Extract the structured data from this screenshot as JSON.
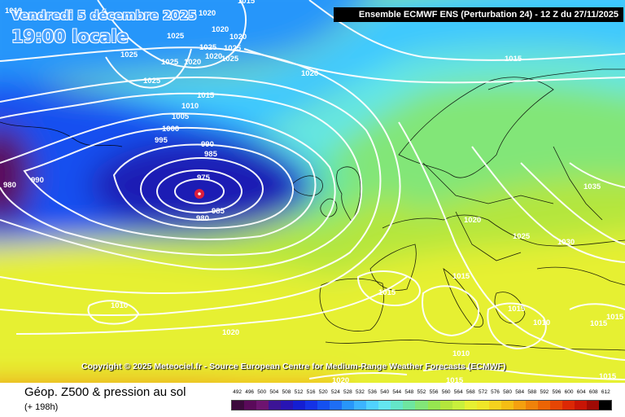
{
  "header": {
    "date_text": "Vendredi 5 décembre 2025",
    "time_text": "19:00 locale",
    "run_info": "Ensemble ECMWF ENS  (Perturbation 24)  -  12 Z du 27/11/2025"
  },
  "copyright": "Copyright © 2025 Meteociel.fr - Source European Centre for Medium-Range Weather Forecasts (ECMWF)",
  "footer": {
    "field_title": "Géop. Z500 & pression au sol",
    "forecast_hours": "(+ 198h)"
  },
  "legend": {
    "labels": [
      "492",
      "496",
      "500",
      "504",
      "508",
      "512",
      "516",
      "520",
      "524",
      "528",
      "532",
      "536",
      "540",
      "544",
      "548",
      "552",
      "556",
      "560",
      "564",
      "568",
      "572",
      "576",
      "580",
      "584",
      "588",
      "592",
      "596",
      "600",
      "604",
      "608",
      "612"
    ],
    "colors": [
      "#3c0a3c",
      "#5a0a5a",
      "#6e1470",
      "#3c1496",
      "#2814b4",
      "#141ed2",
      "#1432e6",
      "#1450f0",
      "#1e6ef5",
      "#2896fa",
      "#3cb4ff",
      "#50d2ff",
      "#64e6f0",
      "#64e6c8",
      "#6ee6a0",
      "#82e678",
      "#96e650",
      "#b4e63c",
      "#c8f03c",
      "#e6f032",
      "#f0e628",
      "#f5d21e",
      "#f5be14",
      "#f5a00f",
      "#f0820a",
      "#eb6405",
      "#e64605",
      "#dc2805",
      "#c81405",
      "#a00a05",
      "#000000"
    ]
  },
  "map": {
    "colors": {
      "purple": "#5a0a5a",
      "deep_blue": "#1e1eb4",
      "blue": "#1450f0",
      "mid_blue": "#2896fa",
      "light_blue": "#3cc8ff",
      "cyan": "#64e6e6",
      "sea_green": "#64e6aa",
      "green": "#82e678",
      "yellow_green": "#b4e63c",
      "yellow": "#e6f032",
      "orange_yellow": "#f5d21e",
      "orange": "#f5a00f",
      "dark_orange": "#f0820a",
      "isobar": "#ffffff",
      "low_center": "#dc1e3c"
    },
    "labels": [
      "1010",
      "1020",
      "1025",
      "1020",
      "1025",
      "1020",
      "1025",
      "1020",
      "1025",
      "1025",
      "1020",
      "1025",
      "1025",
      "1020",
      "1015",
      "1010",
      "1005",
      "1000",
      "995",
      "990",
      "985",
      "975",
      "985",
      "990",
      "980",
      "980",
      "1015",
      "1020",
      "1025",
      "1030",
      "1035",
      "1015",
      "1015",
      "1015",
      "1010",
      "1020",
      "1015",
      "1010",
      "1010",
      "1020",
      "1015",
      "1015",
      "1015",
      "1015"
    ]
  }
}
